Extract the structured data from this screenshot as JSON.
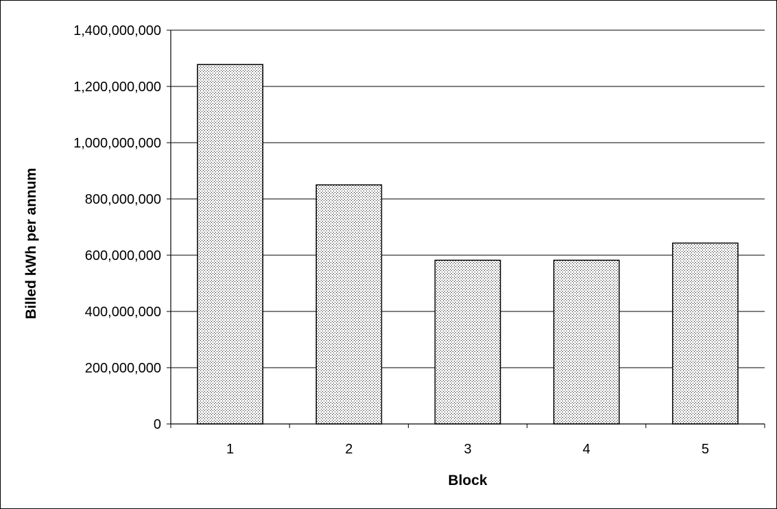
{
  "chart_data": {
    "type": "bar",
    "title": "",
    "xlabel": "Block",
    "ylabel": "Billed kWh per annum",
    "categories": [
      "1",
      "2",
      "3",
      "4",
      "5"
    ],
    "values": [
      1278000000,
      850000000,
      582000000,
      582000000,
      643000000
    ],
    "ylim": [
      0,
      1400000000
    ],
    "yticks": [
      0,
      200000000,
      400000000,
      600000000,
      800000000,
      1000000000,
      1200000000,
      1400000000
    ],
    "ytick_labels": [
      "0",
      "200,000,000",
      "400,000,000",
      "600,000,000",
      "800,000,000",
      "1,000,000,000",
      "1,200,000,000",
      "1,400,000,000"
    ],
    "grid": true,
    "legend": false,
    "bar_fill": "dotted-pattern",
    "colors": {
      "bar_dots": "#000000",
      "bar_background": "#ffffff",
      "gridline": "#000000"
    }
  }
}
